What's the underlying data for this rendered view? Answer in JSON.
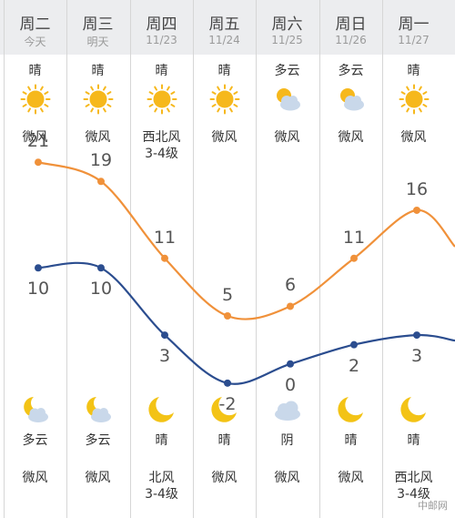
{
  "days": [
    {
      "weekday": "周二",
      "date": "今天",
      "day_cond": "晴",
      "day_icon": "sun-icon",
      "day_wind": "微风",
      "high": 21,
      "low": 10,
      "night_icon": "moon-cloud-icon",
      "night_cond": "多云",
      "night_wind": "微风"
    },
    {
      "weekday": "周三",
      "date": "明天",
      "day_cond": "晴",
      "day_icon": "sun-icon",
      "day_wind": "微风",
      "high": 19,
      "low": 10,
      "night_icon": "moon-cloud-icon",
      "night_cond": "多云",
      "night_wind": "微风"
    },
    {
      "weekday": "周四",
      "date": "11/23",
      "day_cond": "晴",
      "day_icon": "sun-icon",
      "day_wind": "西北风\n3-4级",
      "high": 11,
      "low": 3,
      "night_icon": "moon-icon",
      "night_cond": "晴",
      "night_wind": "北风\n3-4级"
    },
    {
      "weekday": "周五",
      "date": "11/24",
      "day_cond": "晴",
      "day_icon": "sun-icon",
      "day_wind": "微风",
      "high": 5,
      "low": -2,
      "night_icon": "moon-icon",
      "night_cond": "晴",
      "night_wind": "微风"
    },
    {
      "weekday": "周六",
      "date": "11/25",
      "day_cond": "多云",
      "day_icon": "sun-cloud-icon",
      "day_wind": "微风",
      "high": 6,
      "low": 0,
      "night_icon": "cloud-icon",
      "night_cond": "阴",
      "night_wind": "微风"
    },
    {
      "weekday": "周日",
      "date": "11/26",
      "day_cond": "多云",
      "day_icon": "sun-cloud-icon",
      "day_wind": "微风",
      "high": 11,
      "low": 2,
      "night_icon": "moon-icon",
      "night_cond": "晴",
      "night_wind": "微风"
    },
    {
      "weekday": "周一",
      "date": "11/27",
      "day_cond": "晴",
      "day_icon": "sun-icon",
      "day_wind": "微风",
      "high": 16,
      "low": 3,
      "night_icon": "moon-icon",
      "night_cond": "晴",
      "night_wind": "西北风\n3-4级"
    }
  ],
  "colors": {
    "high_line": "#f0913a",
    "low_line": "#2b4d8f",
    "sun": "#f6b81c",
    "cloud": "#c9d8ea",
    "moon": "#f3c316"
  },
  "watermark": "中邮网"
}
